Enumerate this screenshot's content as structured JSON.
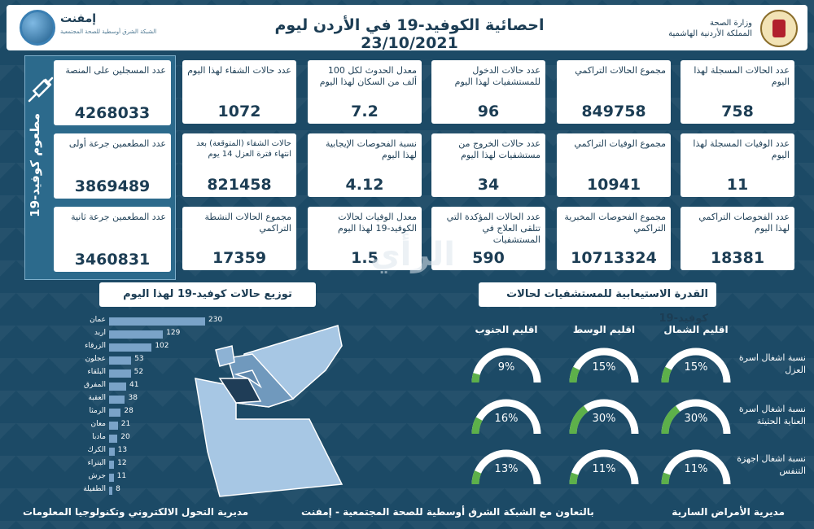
{
  "header": {
    "title": "احصائية الكوفيد-19 في الأردن ليوم 23/10/2021",
    "ministry_line1": "وزارة الصحة",
    "ministry_line2": "المملكة الأردنية الهاشمية",
    "emphnet": "إمفنت",
    "emphnet_sub": "الشبكة الشرق أوسطية للصحة المجتمعية"
  },
  "stats": {
    "daily_cases": {
      "label": "عدد الحالات المسجلة لهذا اليوم",
      "value": "758"
    },
    "total_cases": {
      "label": "مجموع الحالات التراكمي",
      "value": "849758"
    },
    "hospital_admissions": {
      "label": "عدد حالات الدخول للمستشفيات لهذا اليوم",
      "value": "96"
    },
    "incidence": {
      "label": "معدل الحدوث لكل 100 ألف من السكان لهذا اليوم",
      "value": "7.2"
    },
    "recoveries": {
      "label": "عدد حالات الشفاء لهذا اليوم",
      "value": "1072"
    },
    "daily_deaths": {
      "label": "عدد الوفيات المسجلة لهذا اليوم",
      "value": "11"
    },
    "total_deaths": {
      "label": "مجموع الوفيات التراكمي",
      "value": "10941"
    },
    "hospital_discharges": {
      "label": "عدد حالات الخروج من مستشفيات لهذا اليوم",
      "value": "34"
    },
    "positivity": {
      "label": "نسبة الفحوصات الإيجابية لهذا اليوم",
      "value": "4.12"
    },
    "expected_recoveries": {
      "label": "حالات الشفاء (المتوقعة) بعد انتهاء فترة العزل 14 يوم",
      "value": "821458"
    },
    "daily_tests": {
      "label": "عدد الفحوصات التراكمي لهذا اليوم",
      "value": "18381"
    },
    "total_tests": {
      "label": "مجموع الفحوصات المخبرية التراكمي",
      "value": "10713324"
    },
    "hospitalized": {
      "label": "عدد الحالات المؤكدة التي تتلقى العلاج في المستشفيات",
      "value": "590"
    },
    "death_rate": {
      "label": "معدل الوفيات لحالات الكوفيد-19 لهذا اليوم",
      "value": "1.5"
    },
    "active_cases": {
      "label": "مجموع الحالات النشطة التراكمي",
      "value": "17359"
    }
  },
  "vaccination": {
    "panel_label": "مطعوم كوفيد-19",
    "registered": {
      "label": "عدد المسجلين على المنصة",
      "value": "4268033"
    },
    "first_dose": {
      "label": "عدد المطعمين جرعة أولى",
      "value": "3869489"
    },
    "second_dose": {
      "label": "عدد المطعمين جرعة ثانية",
      "value": "3460831"
    }
  },
  "distribution_title": "توزيع حالات كوفيد-19 لهذا اليوم",
  "capacity_title": "القدرة الاستيعابية للمستشفيات لحالات كوفيد-19",
  "chart_data": {
    "type": "bar",
    "title": "توزيع حالات كوفيد-19 لهذا اليوم",
    "categories": [
      "عمان",
      "اربد",
      "الزرقاء",
      "عجلون",
      "البلقاء",
      "المفرق",
      "العقبة",
      "الرمثا",
      "معان",
      "مادبا",
      "الكرك",
      "البتراء",
      "جرش",
      "الطفيلة"
    ],
    "values": [
      230,
      129,
      102,
      53,
      52,
      41,
      38,
      28,
      21,
      20,
      13,
      12,
      11,
      8
    ],
    "xlim": [
      0,
      230
    ]
  },
  "capacity": {
    "regions": [
      "اقليم الشمال",
      "اقليم الوسط",
      "اقليم الجنوب"
    ],
    "rows": [
      {
        "label": "نسبة اشغال اسرة العزل",
        "values": [
          "15%",
          "15%",
          "9%"
        ],
        "fractions": [
          0.15,
          0.15,
          0.09
        ]
      },
      {
        "label": "نسبة اشغال اسرة العناية الحثيثة",
        "values": [
          "30%",
          "30%",
          "16%"
        ],
        "fractions": [
          0.3,
          0.3,
          0.16
        ]
      },
      {
        "label": "نسبة اشغال اجهزة التنفس",
        "values": [
          "11%",
          "11%",
          "13%"
        ],
        "fractions": [
          0.11,
          0.11,
          0.13
        ]
      }
    ]
  },
  "footer": {
    "right": "مديرية الأمراض السارية",
    "middle": "بالتعاون مع الشبكة الشرق أوسطية للصحة المجتمعية - إمفنت",
    "left": "مديرية التحول الالكتروني وتكنولوجيا المعلومات"
  },
  "watermark": "الرأي",
  "colors": {
    "gauge_fill": "#5db04a",
    "gauge_track": "#ffffff",
    "bar": "#7aa3c8",
    "background": "#1c4a66"
  }
}
